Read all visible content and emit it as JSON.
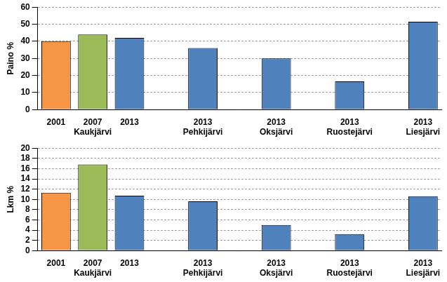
{
  "chart_data": [
    {
      "type": "bar",
      "y_label": "Paino %",
      "categories": [
        [
          "2001"
        ],
        [
          "2007",
          "Kaukjärvi"
        ],
        [
          "2013"
        ],
        null,
        [
          "2013",
          "Pehkijärvi"
        ],
        null,
        [
          "2013",
          "Oksjärvi"
        ],
        null,
        [
          "2013",
          "Ruostejärvi"
        ],
        null,
        [
          "2013",
          "Liesjärvi"
        ]
      ],
      "values": [
        40,
        44,
        42,
        null,
        36,
        null,
        30,
        null,
        16.5,
        null,
        51.5
      ],
      "colors": [
        "#f79646",
        "#9bbb59",
        "#4f81bd",
        null,
        "#4f81bd",
        null,
        "#4f81bd",
        null,
        "#4f81bd",
        null,
        "#4f81bd"
      ],
      "ylim": [
        0,
        60
      ],
      "yticks": [
        0,
        10,
        20,
        30,
        40,
        50,
        60
      ],
      "grid": true
    },
    {
      "type": "bar",
      "y_label": "Lkm %",
      "categories": [
        [
          "2001"
        ],
        [
          "2007",
          "Kaukjärvi"
        ],
        [
          "2013"
        ],
        null,
        [
          "2013",
          "Pehkijärvi"
        ],
        null,
        [
          "2013",
          "Oksjärvi"
        ],
        null,
        [
          "2013",
          "Ruostejärvi"
        ],
        null,
        [
          "2013",
          "Liesjärvi"
        ]
      ],
      "values": [
        11.3,
        16.8,
        10.7,
        null,
        9.6,
        null,
        5,
        null,
        3.2,
        null,
        10.6
      ],
      "colors": [
        "#f79646",
        "#9bbb59",
        "#4f81bd",
        null,
        "#4f81bd",
        null,
        "#4f81bd",
        null,
        "#4f81bd",
        null,
        "#4f81bd"
      ],
      "ylim": [
        0,
        20
      ],
      "yticks": [
        0,
        2,
        4,
        6,
        8,
        10,
        12,
        14,
        16,
        18,
        20
      ],
      "grid": true
    }
  ]
}
